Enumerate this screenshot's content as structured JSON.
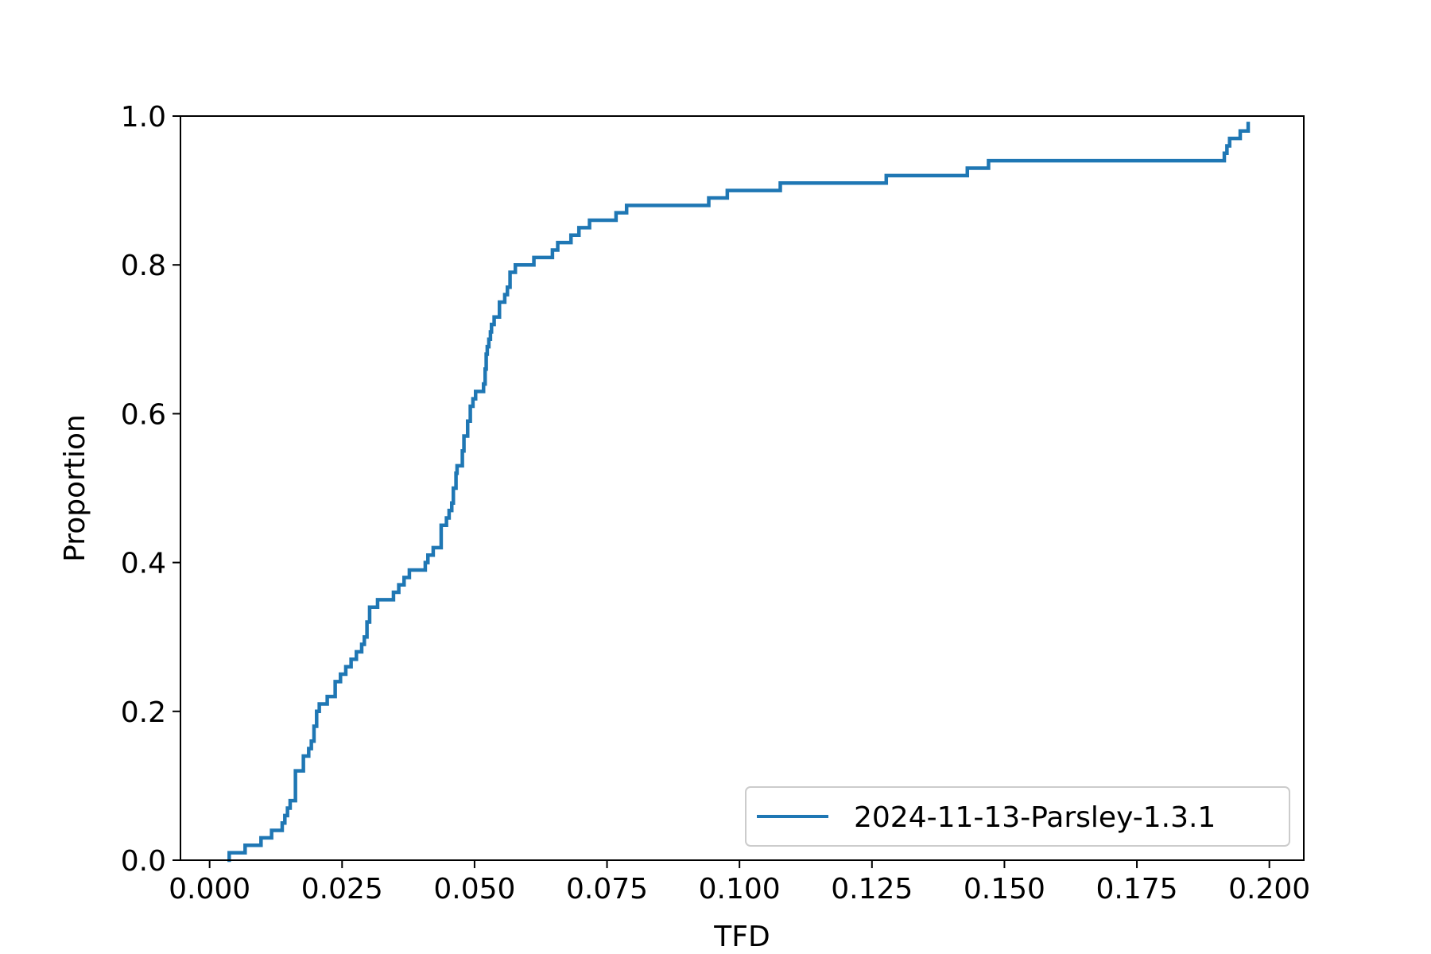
{
  "chart_data": {
    "type": "line",
    "subtype": "ecdf",
    "title": "",
    "xlabel": "TFD",
    "ylabel": "Proportion",
    "xlim": [
      -0.0055,
      0.2065
    ],
    "ylim": [
      0,
      1.0
    ],
    "xticks": [
      0.0,
      0.025,
      0.05,
      0.075,
      0.1,
      0.125,
      0.15,
      0.175,
      0.2
    ],
    "xtick_labels": [
      "0.000",
      "0.025",
      "0.050",
      "0.075",
      "0.100",
      "0.125",
      "0.150",
      "0.175",
      "0.200"
    ],
    "yticks": [
      0.0,
      0.2,
      0.4,
      0.6,
      0.8,
      1.0
    ],
    "ytick_labels": [
      "0.0",
      "0.2",
      "0.4",
      "0.6",
      "0.8",
      "1.0"
    ],
    "grid": false,
    "legend_position": "lower-right",
    "series": [
      {
        "name": "2024-11-13-Parsley-1.3.1",
        "color": "#1f77b4",
        "x": [
          0.0037,
          0.0067,
          0.0097,
          0.0117,
          0.0137,
          0.0142,
          0.0147,
          0.0152,
          0.0162,
          0.0177,
          0.0187,
          0.0192,
          0.0197,
          0.0202,
          0.0207,
          0.0222,
          0.0237,
          0.0247,
          0.0257,
          0.0267,
          0.0277,
          0.0287,
          0.0292,
          0.0297,
          0.0302,
          0.0317,
          0.0347,
          0.0357,
          0.0367,
          0.0377,
          0.0407,
          0.0412,
          0.0422,
          0.0437,
          0.0447,
          0.0452,
          0.0457,
          0.046,
          0.0465,
          0.0467,
          0.0477,
          0.048,
          0.0487,
          0.0492,
          0.0497,
          0.0502,
          0.0517,
          0.052,
          0.0522,
          0.0524,
          0.0527,
          0.053,
          0.0532,
          0.0537,
          0.0547,
          0.0557,
          0.0562,
          0.0567,
          0.0577,
          0.0612,
          0.0647,
          0.0657,
          0.0682,
          0.0697,
          0.0717,
          0.0727,
          0.0767,
          0.0787,
          0.0917,
          0.0942,
          0.0977,
          0.1077,
          0.1277,
          0.143,
          0.147,
          0.1915,
          0.192,
          0.1925,
          0.1945,
          0.196
        ],
        "y": [
          0.01,
          0.02,
          0.03,
          0.04,
          0.05,
          0.06,
          0.07,
          0.08,
          0.12,
          0.14,
          0.15,
          0.16,
          0.18,
          0.2,
          0.21,
          0.22,
          0.24,
          0.25,
          0.26,
          0.27,
          0.28,
          0.29,
          0.3,
          0.32,
          0.34,
          0.35,
          0.36,
          0.37,
          0.38,
          0.39,
          0.4,
          0.41,
          0.42,
          0.45,
          0.46,
          0.47,
          0.48,
          0.5,
          0.52,
          0.53,
          0.55,
          0.57,
          0.59,
          0.61,
          0.62,
          0.63,
          0.64,
          0.66,
          0.68,
          0.69,
          0.7,
          0.71,
          0.72,
          0.73,
          0.75,
          0.76,
          0.77,
          0.79,
          0.8,
          0.81,
          0.82,
          0.83,
          0.84,
          0.85,
          0.86,
          0.86,
          0.87,
          0.88,
          0.88,
          0.89,
          0.9,
          0.91,
          0.92,
          0.93,
          0.94,
          0.95,
          0.96,
          0.97,
          0.98,
          0.99
        ]
      }
    ]
  }
}
